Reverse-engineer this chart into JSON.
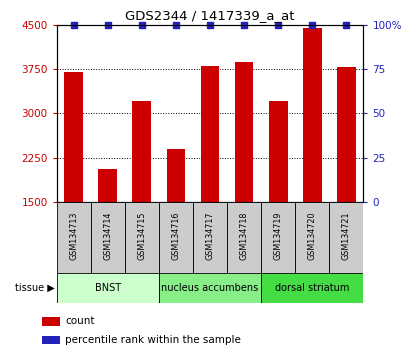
{
  "title": "GDS2344 / 1417339_a_at",
  "samples": [
    "GSM134713",
    "GSM134714",
    "GSM134715",
    "GSM134716",
    "GSM134717",
    "GSM134718",
    "GSM134719",
    "GSM134720",
    "GSM134721"
  ],
  "counts": [
    3700,
    2050,
    3200,
    2400,
    3800,
    3870,
    3200,
    4450,
    3780
  ],
  "percentiles": [
    100,
    100,
    100,
    100,
    100,
    100,
    100,
    100,
    100
  ],
  "ylim_left": [
    1500,
    4500
  ],
  "ylim_right": [
    0,
    100
  ],
  "yticks_left": [
    1500,
    2250,
    3000,
    3750,
    4500
  ],
  "yticks_right": [
    0,
    25,
    50,
    75,
    100
  ],
  "bar_color": "#cc0000",
  "dot_color": "#2222bb",
  "bar_bottom": 1500,
  "tissues": [
    {
      "label": "BNST",
      "start": 0,
      "end": 3,
      "color": "#ccffcc"
    },
    {
      "label": "nucleus accumbens",
      "start": 3,
      "end": 6,
      "color": "#88ee88"
    },
    {
      "label": "dorsal striatum",
      "start": 6,
      "end": 9,
      "color": "#44dd44"
    }
  ],
  "tissue_label": "tissue",
  "legend_count_label": "count",
  "legend_pct_label": "percentile rank within the sample",
  "left_tick_color": "#cc0000",
  "right_tick_color": "#2222bb",
  "grid_style": "dotted",
  "grid_color": "#000000",
  "bg_color": "#ffffff",
  "sample_box_color": "#cccccc",
  "bar_width": 0.55
}
